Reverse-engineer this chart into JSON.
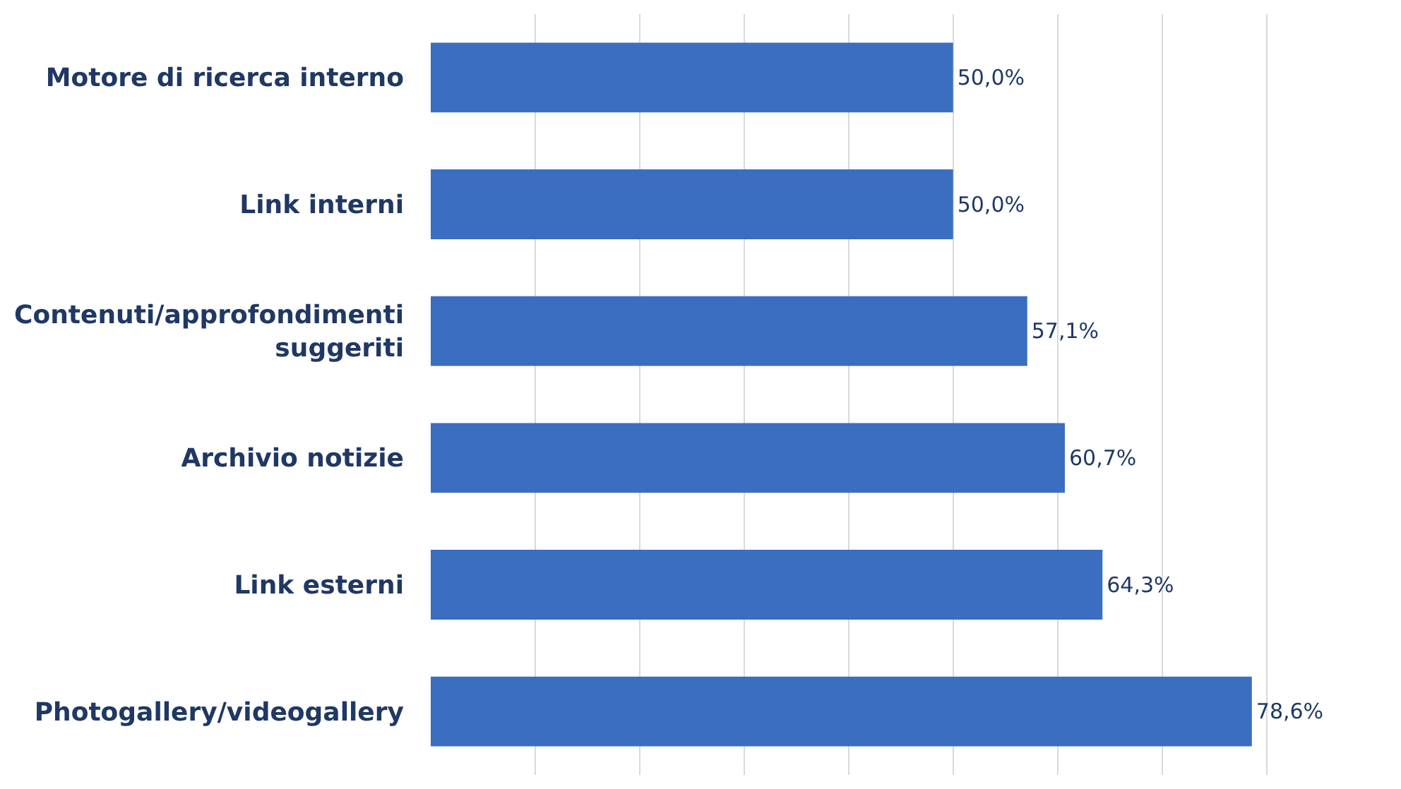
{
  "chart_data": {
    "type": "bar",
    "orientation": "horizontal",
    "categories": [
      "Motore di ricerca interno",
      "Link interni",
      "Contenuti/approfondimenti\nsuggeriti",
      "Archivio notizie",
      "Link esterni",
      "Photogallery/videogallery"
    ],
    "values": [
      50.0,
      50.0,
      57.1,
      60.7,
      64.3,
      78.6
    ],
    "value_labels": [
      "50,0%",
      "50,0%",
      "57,1%",
      "60,7%",
      "64,3%",
      "78,6%"
    ],
    "color": "#3b6dc0",
    "grid": "x",
    "tick_labels": "y"
  }
}
